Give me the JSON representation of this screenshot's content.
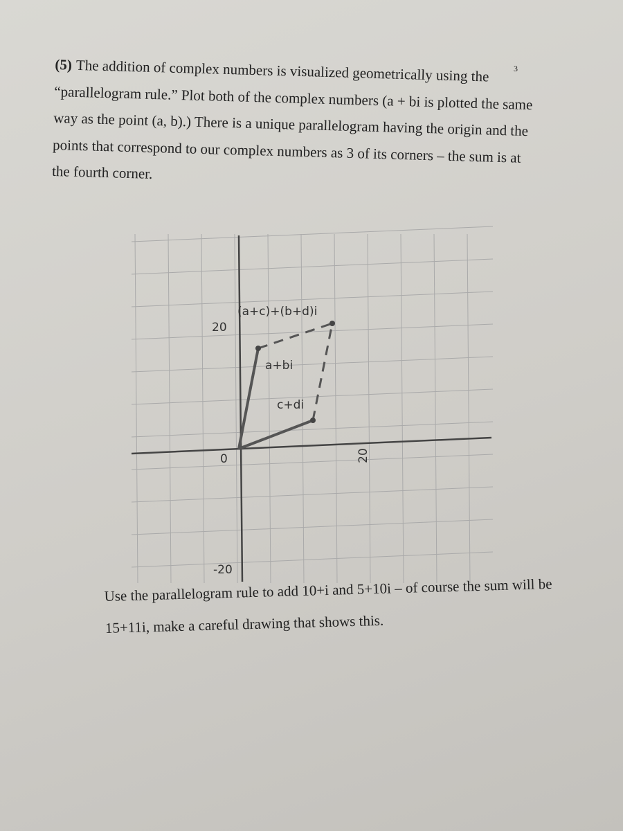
{
  "page_number": "3",
  "problem": {
    "number": "(5)",
    "text": "The addition of complex numbers is visualized geometrically using the “parallelogram rule.” Plot both of the complex numbers (a + bi is plotted the same way as the point (a, b).) There is a unique parallelogram having the origin and the points that correspond to our complex numbers as 3 of its corners – the sum is at the fourth corner."
  },
  "figure": {
    "sum_label": "(a+c)+(b+d)i",
    "first_label": "a+bi",
    "second_label": "c+di",
    "y_tick_top": "20",
    "origin_label": "0",
    "x_tick_right": "20",
    "y_tick_bottom": "-20"
  },
  "exercise": "Use the parallelogram rule to add 10+i and 5+10i – of course the sum will be 15+11i, make a careful drawing that shows this."
}
